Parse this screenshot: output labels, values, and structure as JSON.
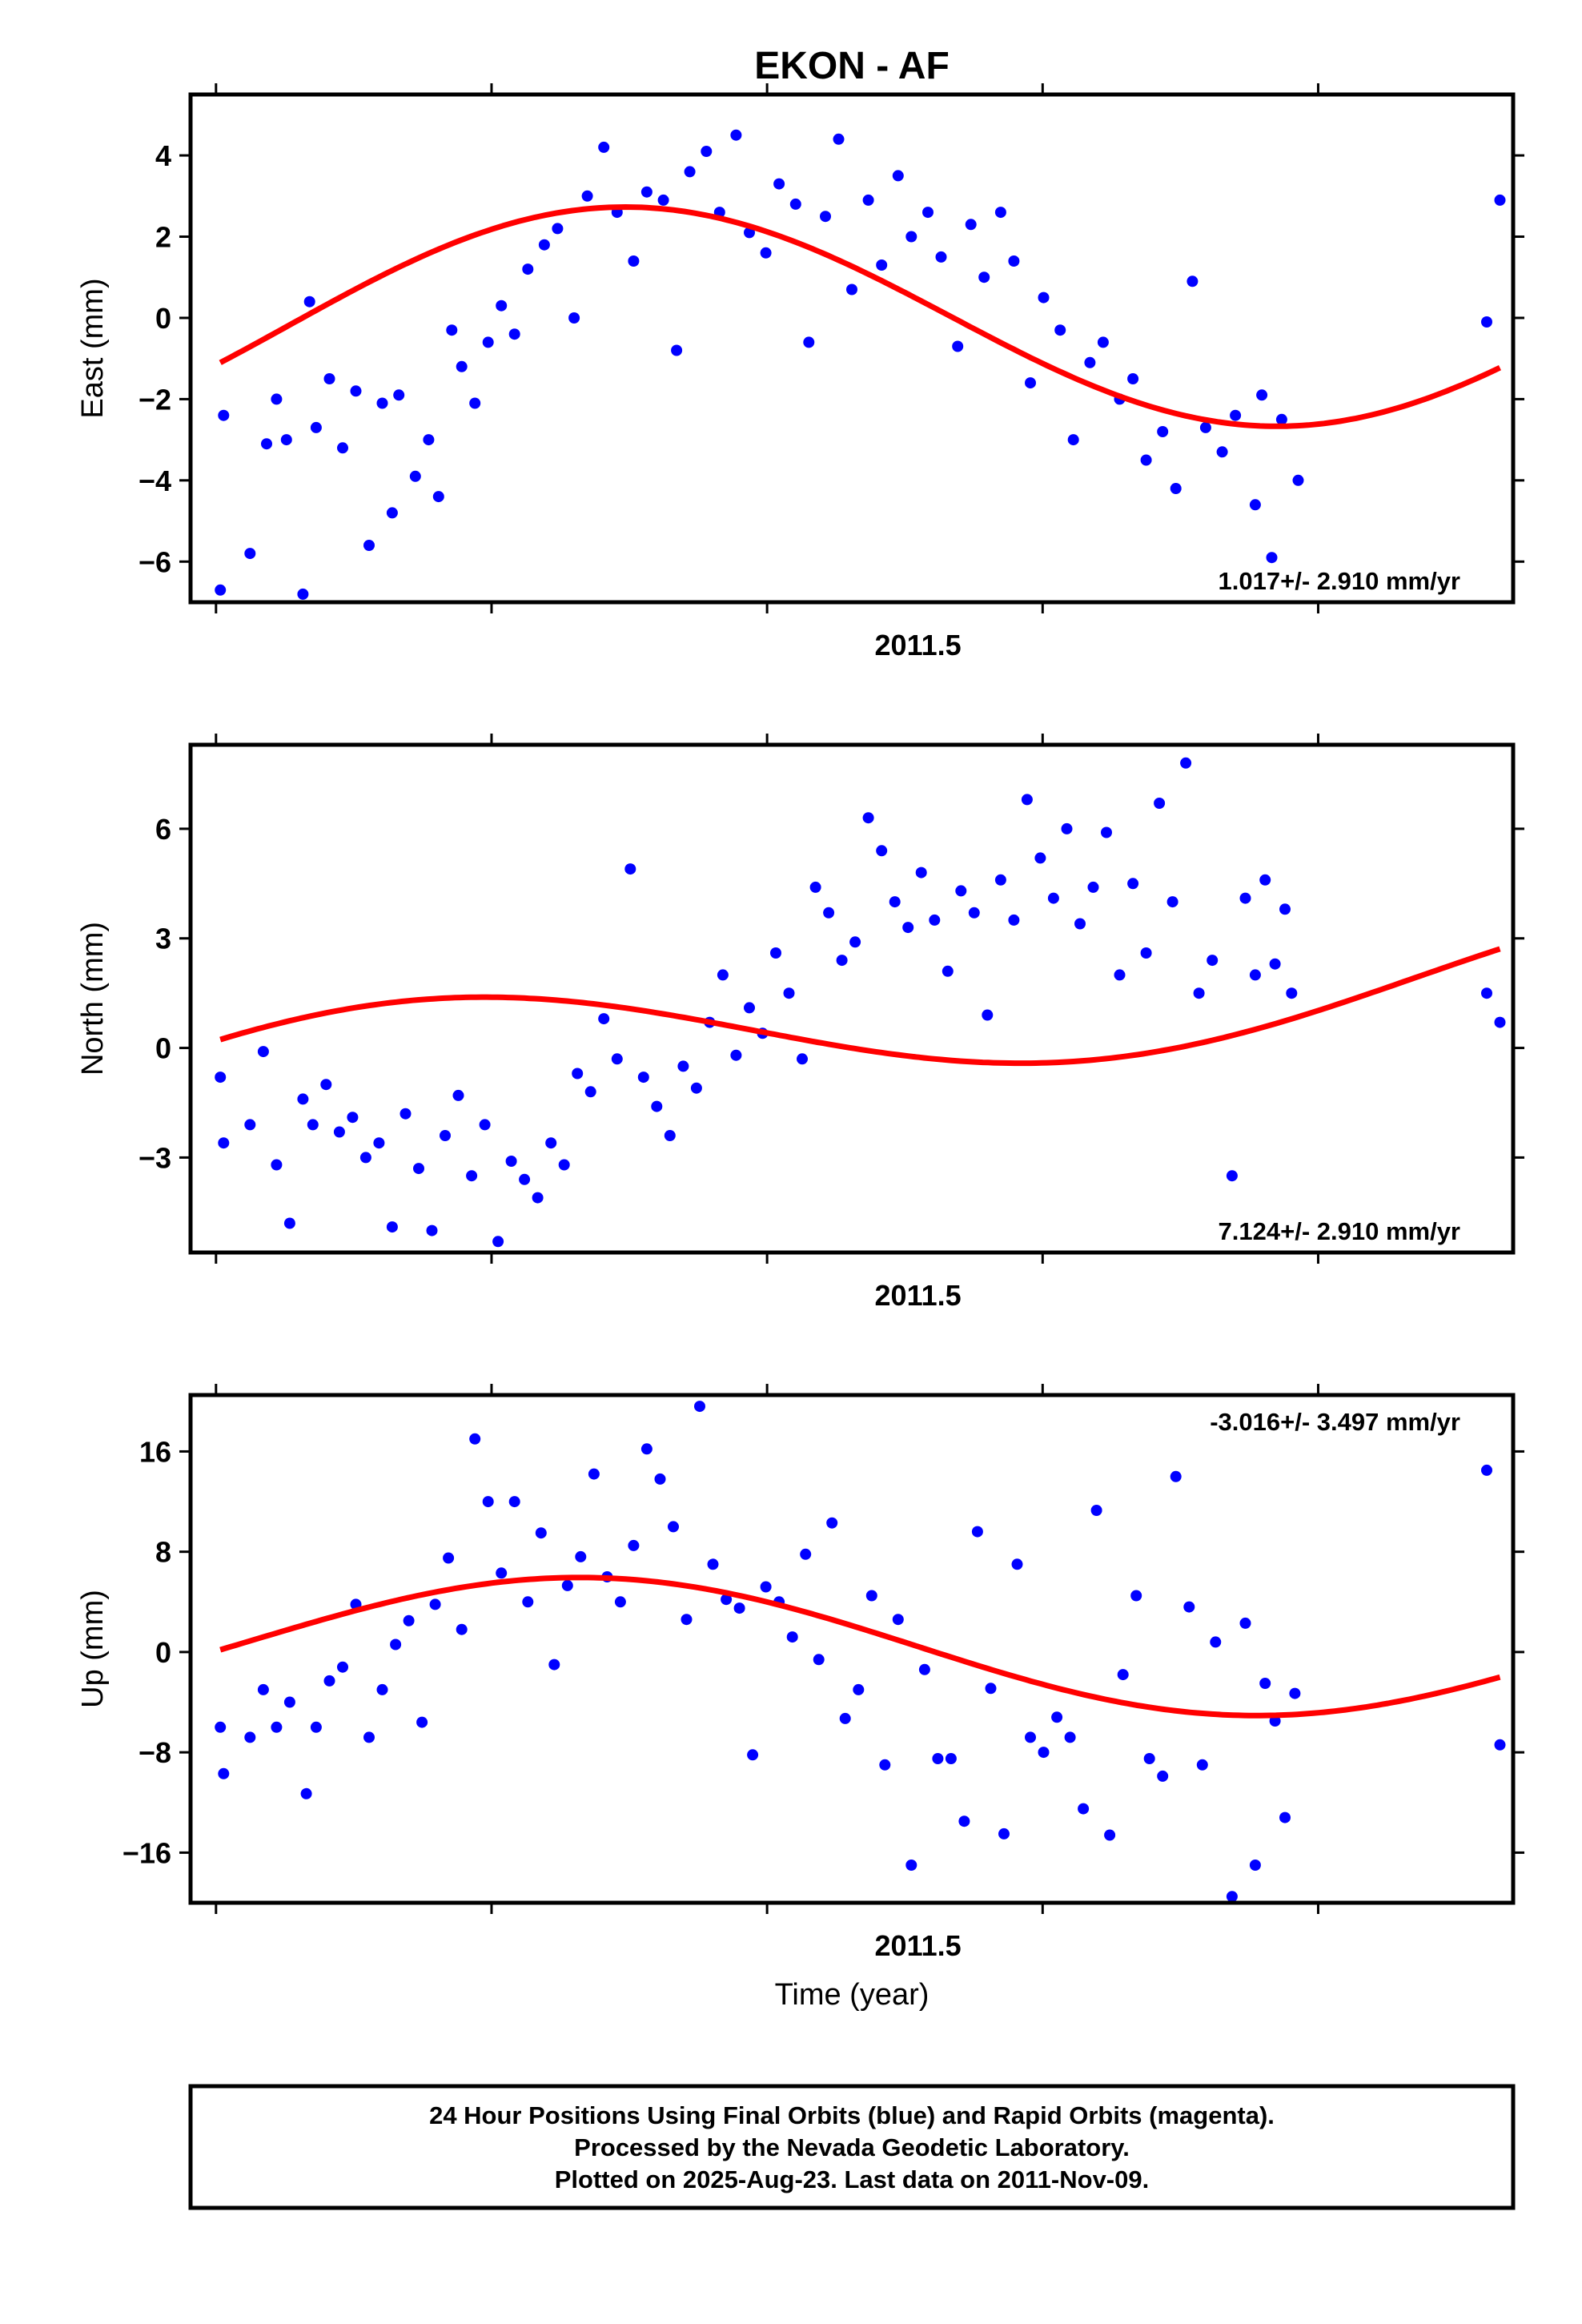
{
  "title": "EKON - AF",
  "footer": {
    "line1": "24 Hour Positions Using Final Orbits (blue) and Rapid Orbits (magenta).",
    "line2": "Processed by the Nevada Geodetic Laboratory.",
    "line3": "Plotted on 2025-Aug-23. Last data on 2011-Nov-09."
  },
  "colors": {
    "data": "#0000ff",
    "fit": "#ff0000",
    "frame": "#000000"
  },
  "chart_data": [
    {
      "type": "scatter",
      "title": "EKON - AF",
      "ylabel": "East (mm)",
      "xlabel": "",
      "xtick_label": "2011.5",
      "xlim": [
        2011.28,
        2011.68
      ],
      "ylim": [
        -7,
        5.5
      ],
      "yticks": [
        -6,
        -4,
        -2,
        0,
        2,
        4
      ],
      "yticklabels": [
        "−6",
        "−4",
        "−2",
        "0",
        "2",
        "4"
      ],
      "rate_label": "1.017+/- 2.910 mm/yr",
      "rate_position": "bottom-right",
      "fit": {
        "mean": 0.0,
        "slope": 1.017,
        "t0": 2011.48,
        "amp": 2.8,
        "period": 0.4,
        "phase": 2011.31
      },
      "series": [
        {
          "name": "",
          "color": "#0000ff",
          "x": [
            2011.289,
            2011.29,
            2011.298,
            2011.303,
            2011.306,
            2011.309,
            2011.314,
            2011.316,
            2011.318,
            2011.322,
            2011.326,
            2011.33,
            2011.334,
            2011.338,
            2011.341,
            2011.343,
            2011.348,
            2011.352,
            2011.355,
            2011.359,
            2011.362,
            2011.366,
            2011.37,
            2011.374,
            2011.378,
            2011.382,
            2011.387,
            2011.391,
            2011.396,
            2011.4,
            2011.405,
            2011.409,
            2011.414,
            2011.418,
            2011.423,
            2011.427,
            2011.431,
            2011.436,
            2011.44,
            2011.445,
            2011.449,
            2011.454,
            2011.458,
            2011.463,
            2011.467,
            2011.472,
            2011.476,
            2011.48,
            2011.485,
            2011.489,
            2011.494,
            2011.498,
            2011.503,
            2011.507,
            2011.512,
            2011.516,
            2011.52,
            2011.525,
            2011.529,
            2011.534,
            2011.538,
            2011.543,
            2011.547,
            2011.552,
            2011.556,
            2011.561,
            2011.565,
            2011.569,
            2011.574,
            2011.578,
            2011.583,
            2011.587,
            2011.592,
            2011.596,
            2011.602,
            2011.604,
            2011.607,
            2011.61,
            2011.615,
            2011.672,
            2011.676
          ],
          "y": [
            -6.7,
            -2.4,
            -5.8,
            -3.1,
            -2.0,
            -3.0,
            -6.8,
            0.4,
            -2.7,
            -1.5,
            -3.2,
            -1.8,
            -5.6,
            -2.1,
            -4.8,
            -1.9,
            -3.9,
            -3.0,
            -4.4,
            -0.3,
            -1.2,
            -2.1,
            -0.6,
            0.3,
            -0.4,
            1.2,
            1.8,
            2.2,
            0.0,
            3.0,
            4.2,
            2.6,
            1.4,
            3.1,
            2.9,
            -0.8,
            3.6,
            4.1,
            2.6,
            4.5,
            2.1,
            1.6,
            3.3,
            2.8,
            -0.6,
            2.5,
            4.4,
            0.7,
            2.9,
            1.3,
            3.5,
            2.0,
            2.6,
            1.5,
            -0.7,
            2.3,
            1.0,
            2.6,
            1.4,
            -1.6,
            0.5,
            -0.3,
            -3.0,
            -1.1,
            -0.6,
            -2.0,
            -1.5,
            -3.5,
            -2.8,
            -4.2,
            0.9,
            -2.7,
            -3.3,
            -2.4,
            -4.6,
            -1.9,
            -5.9,
            -2.5,
            -4.0,
            -0.1,
            2.9
          ]
        }
      ]
    },
    {
      "type": "scatter",
      "title": "",
      "ylabel": "North (mm)",
      "xlabel": "",
      "xtick_label": "2011.5",
      "xlim": [
        2011.28,
        2011.68
      ],
      "ylim": [
        -5.6,
        8.3
      ],
      "yticks": [
        -3,
        0,
        3,
        6
      ],
      "yticklabels": [
        "−3",
        "0",
        "3",
        "6"
      ],
      "rate_label": "7.124+/- 2.910 mm/yr",
      "rate_position": "bottom-right",
      "fit": {
        "mean": 0.7,
        "slope": 7.124,
        "t0": 2011.48,
        "amp": 1.55,
        "period": 0.4,
        "phase": 2011.25
      },
      "series": [
        {
          "name": "",
          "color": "#0000ff",
          "x": [
            2011.289,
            2011.29,
            2011.298,
            2011.302,
            2011.306,
            2011.31,
            2011.314,
            2011.317,
            2011.321,
            2011.325,
            2011.329,
            2011.333,
            2011.337,
            2011.341,
            2011.345,
            2011.349,
            2011.353,
            2011.357,
            2011.361,
            2011.365,
            2011.369,
            2011.373,
            2011.377,
            2011.381,
            2011.385,
            2011.389,
            2011.393,
            2011.397,
            2011.401,
            2011.405,
            2011.409,
            2011.413,
            2011.417,
            2011.421,
            2011.425,
            2011.429,
            2011.433,
            2011.437,
            2011.441,
            2011.445,
            2011.449,
            2011.453,
            2011.457,
            2011.461,
            2011.465,
            2011.469,
            2011.473,
            2011.477,
            2011.481,
            2011.485,
            2011.489,
            2011.493,
            2011.497,
            2011.501,
            2011.505,
            2011.509,
            2011.513,
            2011.517,
            2011.521,
            2011.525,
            2011.529,
            2011.533,
            2011.537,
            2011.541,
            2011.545,
            2011.549,
            2011.553,
            2011.557,
            2011.561,
            2011.565,
            2011.569,
            2011.573,
            2011.577,
            2011.581,
            2011.585,
            2011.589,
            2011.595,
            2011.599,
            2011.602,
            2011.605,
            2011.608,
            2011.611,
            2011.613,
            2011.672,
            2011.676
          ],
          "y": [
            -0.8,
            -2.6,
            -2.1,
            -0.1,
            -3.2,
            -4.8,
            -1.4,
            -2.1,
            -1.0,
            -2.3,
            -1.9,
            -3.0,
            -2.6,
            -4.9,
            -1.8,
            -3.3,
            -5.0,
            -2.4,
            -1.3,
            -3.5,
            -2.1,
            -5.3,
            -3.1,
            -3.6,
            -4.1,
            -2.6,
            -3.2,
            -0.7,
            -1.2,
            0.8,
            -0.3,
            4.9,
            -0.8,
            -1.6,
            -2.4,
            -0.5,
            -1.1,
            0.7,
            2.0,
            -0.2,
            1.1,
            0.4,
            2.6,
            1.5,
            -0.3,
            4.4,
            3.7,
            2.4,
            2.9,
            6.3,
            5.4,
            4.0,
            3.3,
            4.8,
            3.5,
            2.1,
            4.3,
            3.7,
            0.9,
            4.6,
            3.5,
            6.8,
            5.2,
            4.1,
            6.0,
            3.4,
            4.4,
            5.9,
            2.0,
            4.5,
            2.6,
            6.7,
            4.0,
            7.8,
            1.5,
            2.4,
            -3.5,
            4.1,
            2.0,
            4.6,
            2.3,
            3.8,
            1.5,
            1.5,
            0.7
          ]
        }
      ]
    },
    {
      "type": "scatter",
      "title": "",
      "ylabel": "Up (mm)",
      "xlabel": "Time (year)",
      "xtick_label": "2011.5",
      "xlim": [
        2011.28,
        2011.68
      ],
      "ylim": [
        -20,
        20.5
      ],
      "yticks": [
        -16,
        -8,
        0,
        8,
        16
      ],
      "yticklabels": [
        "−16",
        "−8",
        "0",
        "8",
        "16"
      ],
      "rate_label": "-3.016+/- 3.497 mm/yr",
      "rate_position": "top-right",
      "fit": {
        "mean": 0.5,
        "slope": -3.016,
        "t0": 2011.48,
        "amp": 5.2,
        "period": 0.4,
        "phase": 2011.3
      },
      "series": [
        {
          "name": "",
          "color": "#0000ff",
          "x": [
            2011.289,
            2011.29,
            2011.298,
            2011.302,
            2011.306,
            2011.31,
            2011.315,
            2011.318,
            2011.322,
            2011.326,
            2011.33,
            2011.334,
            2011.338,
            2011.342,
            2011.346,
            2011.35,
            2011.354,
            2011.358,
            2011.362,
            2011.366,
            2011.37,
            2011.374,
            2011.378,
            2011.382,
            2011.386,
            2011.39,
            2011.394,
            2011.398,
            2011.402,
            2011.406,
            2011.41,
            2011.414,
            2011.418,
            2011.422,
            2011.426,
            2011.43,
            2011.434,
            2011.438,
            2011.442,
            2011.446,
            2011.45,
            2011.454,
            2011.458,
            2011.462,
            2011.466,
            2011.47,
            2011.474,
            2011.478,
            2011.482,
            2011.486,
            2011.49,
            2011.494,
            2011.498,
            2011.502,
            2011.506,
            2011.51,
            2011.514,
            2011.518,
            2011.522,
            2011.526,
            2011.53,
            2011.534,
            2011.538,
            2011.542,
            2011.546,
            2011.55,
            2011.554,
            2011.558,
            2011.562,
            2011.566,
            2011.57,
            2011.574,
            2011.578,
            2011.582,
            2011.586,
            2011.59,
            2011.595,
            2011.599,
            2011.602,
            2011.605,
            2011.608,
            2011.611,
            2011.614,
            2011.672,
            2011.676
          ],
          "y": [
            -6.0,
            -9.7,
            -6.8,
            -3.0,
            -6.0,
            -4.0,
            -11.3,
            -6.0,
            -2.3,
            -1.2,
            3.8,
            -6.8,
            -3.0,
            0.6,
            2.5,
            -5.6,
            3.8,
            7.5,
            1.8,
            17.0,
            12.0,
            6.3,
            12.0,
            4.0,
            9.5,
            -1.0,
            5.3,
            7.6,
            14.2,
            6.0,
            4.0,
            8.5,
            16.2,
            13.8,
            10.0,
            2.6,
            19.6,
            7.0,
            4.2,
            3.5,
            -8.2,
            5.2,
            4.0,
            1.2,
            7.8,
            -0.6,
            10.3,
            -5.3,
            -3.0,
            4.5,
            -9.0,
            2.6,
            -17.0,
            -1.4,
            -8.5,
            -8.5,
            -13.5,
            9.6,
            -2.9,
            -14.5,
            7.0,
            -6.8,
            -8.0,
            -5.2,
            -6.8,
            -12.5,
            11.3,
            -14.6,
            -1.8,
            4.5,
            -8.5,
            -9.9,
            14.0,
            3.6,
            -9.0,
            0.8,
            -19.5,
            2.3,
            -17.0,
            -2.5,
            -5.5,
            -13.2,
            -3.3,
            14.5,
            -7.4
          ]
        }
      ]
    }
  ]
}
